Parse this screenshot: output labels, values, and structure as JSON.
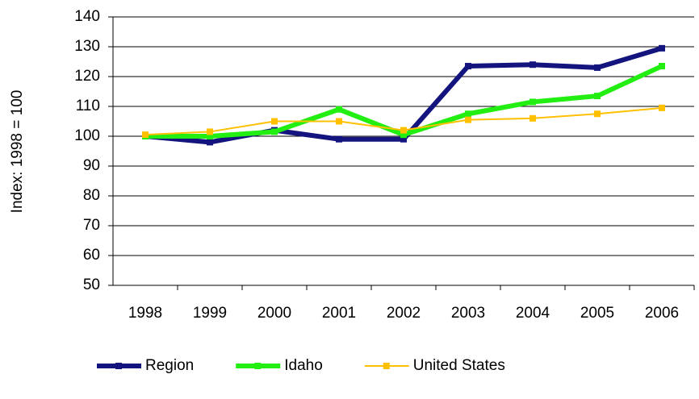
{
  "chart_data": {
    "type": "line",
    "y_label": "Index: 1998 = 100",
    "categories": [
      "1998",
      "1999",
      "2000",
      "2001",
      "2002",
      "2003",
      "2004",
      "2005",
      "2006"
    ],
    "series": [
      {
        "name": "Region",
        "color": "#14147e",
        "values": [
          100,
          98,
          102,
          99,
          99,
          123.5,
          124,
          123,
          129.5
        ]
      },
      {
        "name": "Idaho",
        "color": "#22ee11",
        "values": [
          100,
          100,
          101.5,
          109,
          100.5,
          107.5,
          111.5,
          113.5,
          123.5
        ]
      },
      {
        "name": "United States",
        "color": "#ffc000",
        "values": [
          100.5,
          101.5,
          105,
          105,
          102,
          105.5,
          106,
          107.5,
          109.5
        ]
      }
    ],
    "ylim": [
      50,
      140
    ],
    "yticks": [
      50,
      60,
      70,
      80,
      90,
      100,
      110,
      120,
      130,
      140
    ],
    "grid": true,
    "legend": "bottom"
  }
}
